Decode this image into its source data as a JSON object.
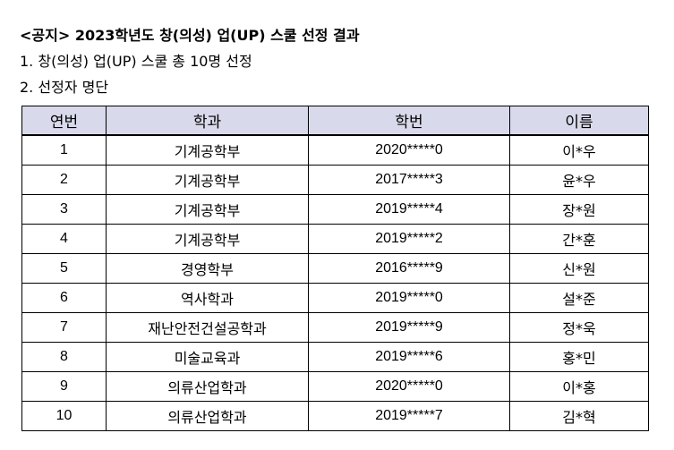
{
  "notice": {
    "title": "<공지> 2023학년도 창(의성) 업(UP) 스쿨 선정 결과",
    "line1": "1. 창(의성) 업(UP) 스쿨 총 10명 선정",
    "line2": "2. 선정자 명단"
  },
  "table": {
    "headers": [
      "연번",
      "학과",
      "학번",
      "이름"
    ],
    "rows": [
      {
        "no": "1",
        "dept": "기계공학부",
        "student_id": "2020*****0",
        "name": "이*우"
      },
      {
        "no": "2",
        "dept": "기계공학부",
        "student_id": "2017*****3",
        "name": "윤*우"
      },
      {
        "no": "3",
        "dept": "기계공학부",
        "student_id": "2019*****4",
        "name": "장*원"
      },
      {
        "no": "4",
        "dept": "기계공학부",
        "student_id": "2019*****2",
        "name": "간*훈"
      },
      {
        "no": "5",
        "dept": "경영학부",
        "student_id": "2016*****9",
        "name": "신*원"
      },
      {
        "no": "6",
        "dept": "역사학과",
        "student_id": "2019*****0",
        "name": "설*준"
      },
      {
        "no": "7",
        "dept": "재난안전건설공학과",
        "student_id": "2019*****9",
        "name": "정*욱"
      },
      {
        "no": "8",
        "dept": "미술교육과",
        "student_id": "2019*****6",
        "name": "홍*민"
      },
      {
        "no": "9",
        "dept": "의류산업학과",
        "student_id": "2020*****0",
        "name": "이*홍"
      },
      {
        "no": "10",
        "dept": "의류산업학과",
        "student_id": "2019*****7",
        "name": "김*혁"
      }
    ]
  },
  "colors": {
    "header_bg": "#d9d9ec",
    "border": "#000000"
  }
}
